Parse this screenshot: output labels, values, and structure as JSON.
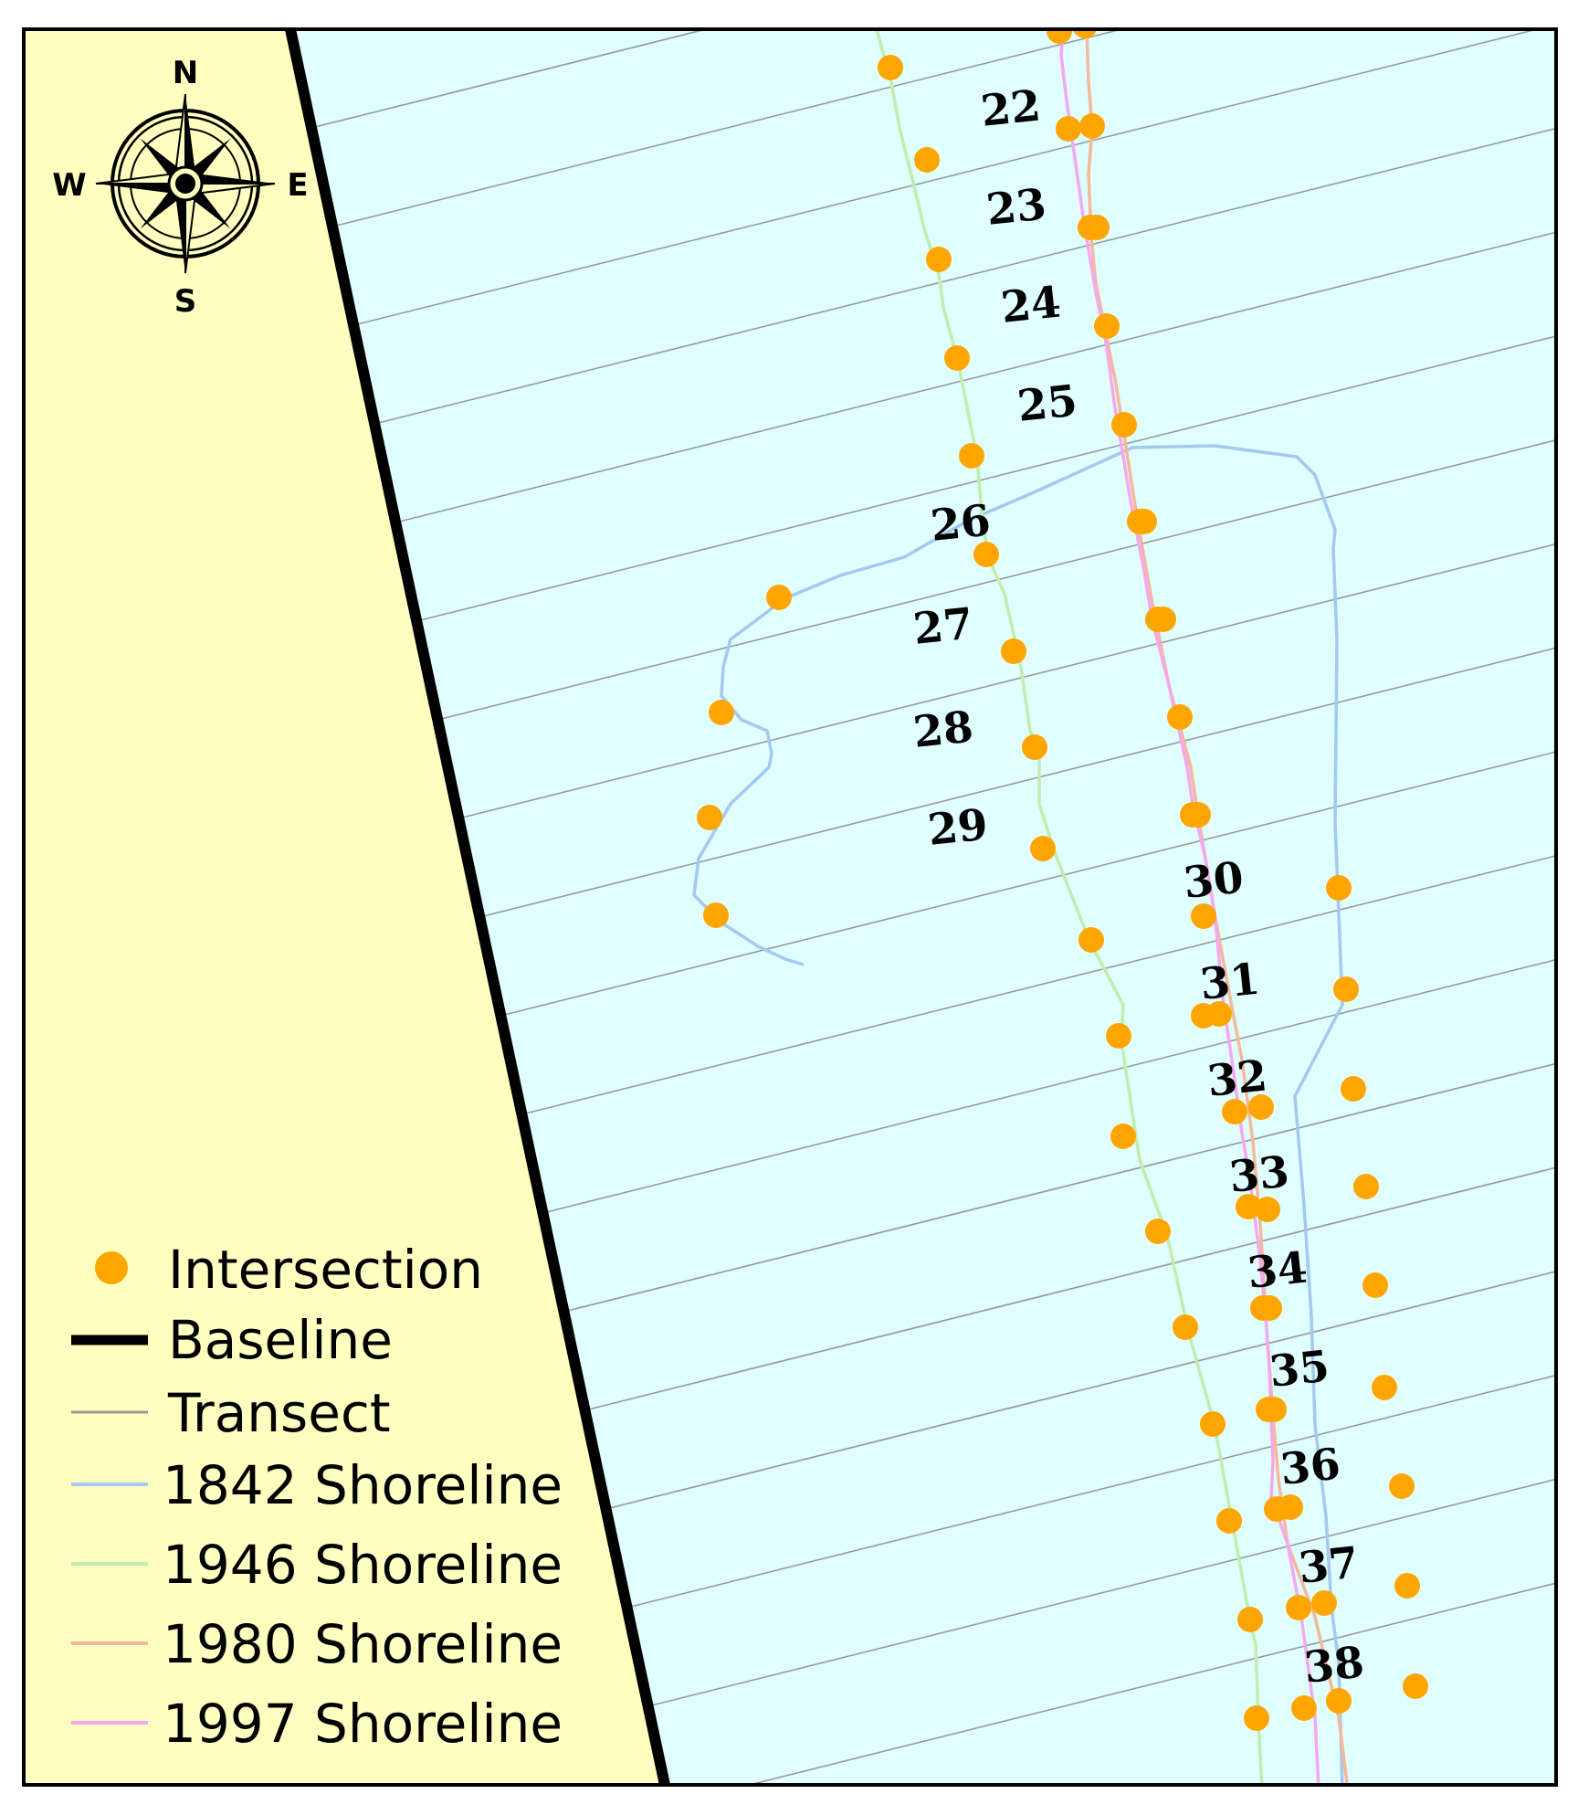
{
  "colors": {
    "land": "#FFFFC0",
    "water": "#E0FFFF",
    "frame": "#000000",
    "intersection": "#FFA500",
    "baseline": "#000000",
    "transect": "#999999",
    "shoreline_1842": "#A4C8F0",
    "shoreline_1946": "#C0EDB0",
    "shoreline_1980": "#F4B89A",
    "shoreline_1997": "#F5A8F0"
  },
  "compass": {
    "north": "N",
    "south": "S",
    "east": "E",
    "west": "W"
  },
  "transect_labels": [
    "22",
    "23",
    "24",
    "25",
    "26",
    "27",
    "28",
    "29",
    "30",
    "31",
    "32",
    "33",
    "34",
    "35",
    "36",
    "37",
    "38"
  ],
  "legend": {
    "items": [
      {
        "key": "intersection",
        "label": "Intersection",
        "icon": "orange-dot"
      },
      {
        "key": "baseline",
        "label": "Baseline",
        "icon": "thick-black-line"
      },
      {
        "key": "transect",
        "label": "Transect",
        "icon": "thin-gray-line"
      },
      {
        "key": "shoreline_1842",
        "label": "1842 Shoreline",
        "icon": "blue-line"
      },
      {
        "key": "shoreline_1946",
        "label": "1946 Shoreline",
        "icon": "green-line"
      },
      {
        "key": "shoreline_1980",
        "label": "1980 Shoreline",
        "icon": "salmon-line"
      },
      {
        "key": "shoreline_1997",
        "label": "1997 Shoreline",
        "icon": "pink-line"
      }
    ]
  }
}
